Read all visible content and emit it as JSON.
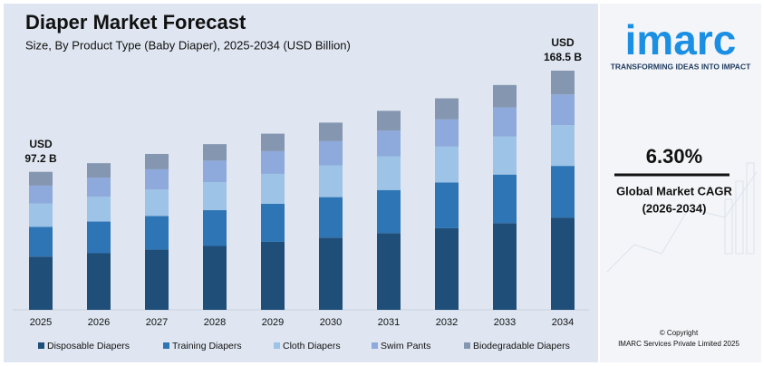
{
  "chart_data": {
    "type": "stacked_bar",
    "title": "Diaper Market Forecast",
    "subtitle": "Size, By Product Type (Baby Diaper), 2025-2034 (USD Billion)",
    "categories": [
      "2025",
      "2026",
      "2027",
      "2028",
      "2029",
      "2030",
      "2031",
      "2032",
      "2033",
      "2034"
    ],
    "series": [
      {
        "name": "Disposable Diapers",
        "color": "#1f4e79",
        "values": [
          37.5,
          39.9,
          42.4,
          45.0,
          47.9,
          50.9,
          54.1,
          57.5,
          61.1,
          65.0
        ]
      },
      {
        "name": "Training Diapers",
        "color": "#2e75b6",
        "values": [
          21.0,
          22.3,
          23.7,
          25.2,
          26.8,
          28.5,
          30.3,
          32.2,
          34.2,
          36.4
        ]
      },
      {
        "name": "Cloth Diapers",
        "color": "#9dc3e6",
        "values": [
          16.5,
          17.6,
          18.7,
          19.8,
          21.1,
          22.4,
          23.8,
          25.3,
          26.9,
          28.7
        ]
      },
      {
        "name": "Swim Pants",
        "color": "#8ea9db",
        "values": [
          12.5,
          13.3,
          14.2,
          15.1,
          16.0,
          17.0,
          18.1,
          19.2,
          20.4,
          21.7
        ]
      },
      {
        "name": "Biodegradable Diapers",
        "color": "#8496b0",
        "values": [
          9.7,
          10.2,
          10.8,
          11.6,
          12.3,
          13.1,
          13.9,
          14.8,
          15.8,
          16.7
        ]
      }
    ],
    "annotations": [
      {
        "lines": [
          "USD",
          "97.2 B"
        ]
      },
      {
        "lines": [
          "USD",
          "168.5 B"
        ]
      }
    ]
  },
  "panel": {
    "logo": "imarc",
    "tagline": "TRANSFORMING IDEAS INTO IMPACT",
    "cagr": "6.30%",
    "cagr_label": "Global Market CAGR",
    "cagr_period": "(2026-2034)",
    "copyright": "© Copyright",
    "company": "IMARC Services Private Limited 2025"
  }
}
